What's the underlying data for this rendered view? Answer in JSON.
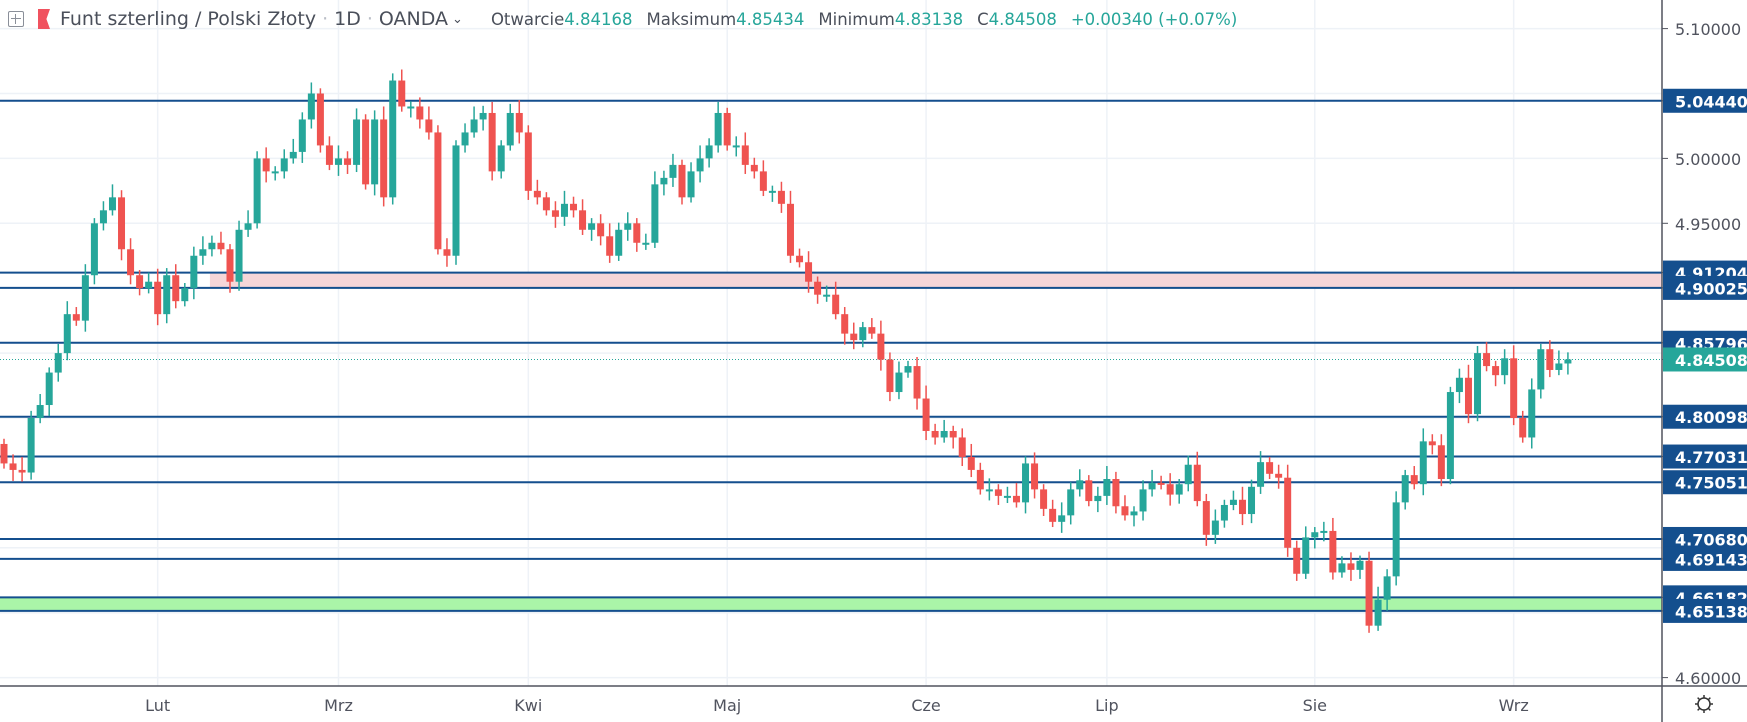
{
  "header": {
    "symbol": "Funt szterling / Polski Złoty",
    "interval": "1D",
    "source": "OANDA",
    "open_label": "Otwarcie",
    "open": "4.84168",
    "high_label": "Maksimum",
    "high": "4.85434",
    "low_label": "Minimum",
    "low": "4.83138",
    "close_label": "C",
    "close": "4.84508",
    "change": "+0.00340 (+0.07%)"
  },
  "colors": {
    "up": "#26a69a",
    "down": "#ef5350",
    "level": "#144f8e",
    "resistance_zone": "#f6d6d8",
    "support_zone": "#aaf5a8"
  },
  "chart_data": {
    "type": "candlestick",
    "title": "Funt szterling / Polski Złoty, 1D, OANDA",
    "ylim": [
      4.58,
      5.115
    ],
    "y_ticks": [
      "5.10000",
      "5.00000",
      "4.95000",
      "4.60000"
    ],
    "x_ticks": [
      {
        "label": "Lut",
        "index": 17
      },
      {
        "label": "Mrz",
        "index": 37
      },
      {
        "label": "Kwi",
        "index": 58
      },
      {
        "label": "Maj",
        "index": 80
      },
      {
        "label": "Cze",
        "index": 102
      },
      {
        "label": "Lip",
        "index": 122
      },
      {
        "label": "Sie",
        "index": 145
      },
      {
        "label": "Wrz",
        "index": 167
      }
    ],
    "first_open": 4.78,
    "closes": [
      4.765,
      4.76,
      4.758,
      4.8,
      4.81,
      4.835,
      4.85,
      4.88,
      4.875,
      4.91,
      4.95,
      4.96,
      4.97,
      4.93,
      4.91,
      4.9,
      4.905,
      4.88,
      4.91,
      4.89,
      4.9,
      4.925,
      4.93,
      4.935,
      4.93,
      4.905,
      4.945,
      4.95,
      5.0,
      4.99,
      4.99,
      5.0,
      5.005,
      5.03,
      5.05,
      5.01,
      4.995,
      5.0,
      4.995,
      5.03,
      4.98,
      5.03,
      4.97,
      5.06,
      5.04,
      5.04,
      5.03,
      5.02,
      4.93,
      4.925,
      5.01,
      5.02,
      5.03,
      5.035,
      4.99,
      5.01,
      5.035,
      5.02,
      4.975,
      4.97,
      4.96,
      4.955,
      4.965,
      4.96,
      4.945,
      4.95,
      4.94,
      4.925,
      4.945,
      4.95,
      4.935,
      4.935,
      4.98,
      4.985,
      4.995,
      4.97,
      4.99,
      5.0,
      5.01,
      5.035,
      5.01,
      5.01,
      4.995,
      4.99,
      4.975,
      4.975,
      4.965,
      4.925,
      4.92,
      4.905,
      4.895,
      4.895,
      4.88,
      4.865,
      4.86,
      4.87,
      4.865,
      4.845,
      4.82,
      4.835,
      4.84,
      4.815,
      4.79,
      4.785,
      4.79,
      4.785,
      4.77,
      4.76,
      4.745,
      4.745,
      4.74,
      4.74,
      4.735,
      4.765,
      4.745,
      4.73,
      4.72,
      4.725,
      4.745,
      4.752,
      4.736,
      4.74,
      4.753,
      4.732,
      4.725,
      4.728,
      4.745,
      4.75,
      4.749,
      4.741,
      4.749,
      4.764,
      4.736,
      4.71,
      4.721,
      4.733,
      4.737,
      4.726,
      4.747,
      4.766,
      4.757,
      4.754,
      4.7,
      4.68,
      4.708,
      4.712,
      4.713,
      4.681,
      4.688,
      4.683,
      4.69,
      4.64,
      4.66,
      4.678,
      4.735,
      4.756,
      4.749,
      4.782,
      4.779,
      4.753,
      4.82,
      4.831,
      4.803,
      4.85,
      4.84,
      4.833,
      4.846,
      4.8,
      4.785,
      4.822,
      4.853,
      4.837,
      4.842,
      4.84508
    ],
    "levels": [
      "5.04440",
      "4.91204",
      "4.90025",
      "4.85796",
      "4.80098",
      "4.77031",
      "4.75051",
      "4.70680",
      "4.69143",
      "4.66182",
      "4.65138"
    ],
    "zones": [
      {
        "name": "resistance-zone",
        "from": 4.90025,
        "to": 4.91204,
        "start_index": 23
      },
      {
        "name": "support-zone",
        "from": 4.65138,
        "to": 4.66182,
        "start_index": 0
      }
    ],
    "last_price": "4.84508"
  }
}
